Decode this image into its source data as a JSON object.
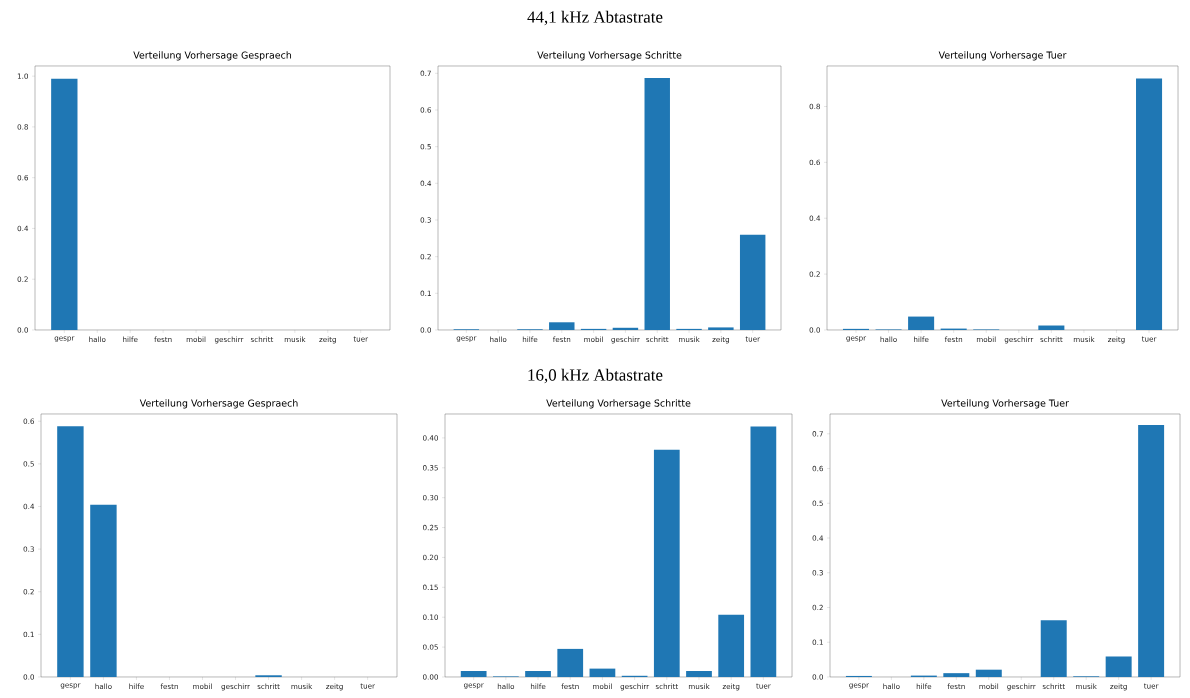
{
  "chart_data": [
    {
      "type": "bar",
      "title": "Verteilung Vorhersage Gespraech",
      "categories": [
        "gespr",
        "hallo",
        "hilfe",
        "festn",
        "mobil",
        "geschirr",
        "schritt",
        "musik",
        "zeitg",
        "tuer"
      ],
      "values": [
        0.99,
        0,
        0,
        0,
        0,
        0,
        0,
        0,
        0,
        0
      ],
      "color": "#1f77b4",
      "ylim": [
        0,
        1.04
      ],
      "yticks": [
        {
          "value": 0,
          "label": "0.0"
        },
        {
          "value": 0.2,
          "label": "0.2"
        },
        {
          "value": 0.4,
          "label": "0.4"
        },
        {
          "value": 0.6,
          "label": "0.6"
        },
        {
          "value": 0.8,
          "label": "0.8"
        },
        {
          "value": 1,
          "label": "1.0"
        }
      ]
    },
    {
      "type": "bar",
      "title": "Verteilung Vorhersage Schritte",
      "annotations": [
        "44,1 kHz Abtastrate"
      ],
      "categories": [
        "gespr",
        "hallo",
        "hilfe",
        "festn",
        "mobil",
        "geschirr",
        "schritt",
        "musik",
        "zeitg",
        "tuer"
      ],
      "values": [
        0.002,
        0,
        0.002,
        0.021,
        0.003,
        0.006,
        0.687,
        0.003,
        0.007,
        0.26
      ],
      "color": "#1f77b4",
      "ylim": [
        0,
        0.72
      ],
      "yticks": [
        {
          "value": 0,
          "label": "0.0"
        },
        {
          "value": 0.1,
          "label": "0.1"
        },
        {
          "value": 0.2,
          "label": "0.2"
        },
        {
          "value": 0.3,
          "label": "0.3"
        },
        {
          "value": 0.4,
          "label": "0.4"
        },
        {
          "value": 0.5,
          "label": "0.5"
        },
        {
          "value": 0.6,
          "label": "0.6"
        },
        {
          "value": 0.7,
          "label": "0.7"
        }
      ]
    },
    {
      "type": "bar",
      "title": "Verteilung Vorhersage Tuer",
      "categories": [
        "gespr",
        "hallo",
        "hilfe",
        "festn",
        "mobil",
        "geschirr",
        "schritt",
        "musik",
        "zeitg",
        "tuer"
      ],
      "values": [
        0.004,
        0.002,
        0.048,
        0.005,
        0.002,
        0,
        0.016,
        0,
        0,
        0.9
      ],
      "color": "#1f77b4",
      "ylim": [
        0,
        0.945
      ],
      "yticks": [
        {
          "value": 0,
          "label": "0.0"
        },
        {
          "value": 0.2,
          "label": "0.2"
        },
        {
          "value": 0.4,
          "label": "0.4"
        },
        {
          "value": 0.6,
          "label": "0.6"
        },
        {
          "value": 0.8,
          "label": "0.8"
        }
      ]
    },
    {
      "type": "bar",
      "title": "Verteilung Vorhersage Gespraech",
      "categories": [
        "gespr",
        "hallo",
        "hilfe",
        "festn",
        "mobil",
        "geschirr",
        "schritt",
        "musik",
        "zeitg",
        "tuer"
      ],
      "values": [
        0.588,
        0.404,
        0,
        0,
        0,
        0,
        0.004,
        0,
        0,
        0
      ],
      "color": "#1f77b4",
      "ylim": [
        0,
        0.617
      ],
      "yticks": [
        {
          "value": 0,
          "label": "0.0"
        },
        {
          "value": 0.1,
          "label": "0.1"
        },
        {
          "value": 0.2,
          "label": "0.2"
        },
        {
          "value": 0.3,
          "label": "0.3"
        },
        {
          "value": 0.4,
          "label": "0.4"
        },
        {
          "value": 0.5,
          "label": "0.5"
        },
        {
          "value": 0.6,
          "label": "0.6"
        }
      ]
    },
    {
      "type": "bar",
      "title": "Verteilung Vorhersage Schritte",
      "annotations": [
        "16,0 kHz Abtastrate"
      ],
      "categories": [
        "gespr",
        "hallo",
        "hilfe",
        "festn",
        "mobil",
        "geschirr",
        "schritt",
        "musik",
        "zeitg",
        "tuer"
      ],
      "values": [
        0.01,
        0.001,
        0.01,
        0.047,
        0.014,
        0.002,
        0.38,
        0.01,
        0.104,
        0.419
      ],
      "color": "#1f77b4",
      "ylim": [
        0,
        0.44
      ],
      "yticks": [
        {
          "value": 0,
          "label": "0.00"
        },
        {
          "value": 0.05,
          "label": "0.05"
        },
        {
          "value": 0.1,
          "label": "0.10"
        },
        {
          "value": 0.15,
          "label": "0.15"
        },
        {
          "value": 0.2,
          "label": "0.20"
        },
        {
          "value": 0.25,
          "label": "0.25"
        },
        {
          "value": 0.3,
          "label": "0.30"
        },
        {
          "value": 0.35,
          "label": "0.35"
        },
        {
          "value": 0.4,
          "label": "0.40"
        }
      ]
    },
    {
      "type": "bar",
      "title": "Verteilung Vorhersage Tuer",
      "categories": [
        "gespr",
        "hallo",
        "hilfe",
        "festn",
        "mobil",
        "geschirr",
        "schritt",
        "musik",
        "zeitg",
        "tuer"
      ],
      "values": [
        0.003,
        0,
        0.004,
        0.011,
        0.021,
        0,
        0.163,
        0.002,
        0.059,
        0.725
      ],
      "color": "#1f77b4",
      "ylim": [
        0,
        0.757
      ],
      "yticks": [
        {
          "value": 0,
          "label": "0.0"
        },
        {
          "value": 0.1,
          "label": "0.1"
        },
        {
          "value": 0.2,
          "label": "0.2"
        },
        {
          "value": 0.3,
          "label": "0.3"
        },
        {
          "value": 0.4,
          "label": "0.4"
        },
        {
          "value": 0.5,
          "label": "0.5"
        },
        {
          "value": 0.6,
          "label": "0.6"
        },
        {
          "value": 0.7,
          "label": "0.7"
        }
      ]
    }
  ]
}
